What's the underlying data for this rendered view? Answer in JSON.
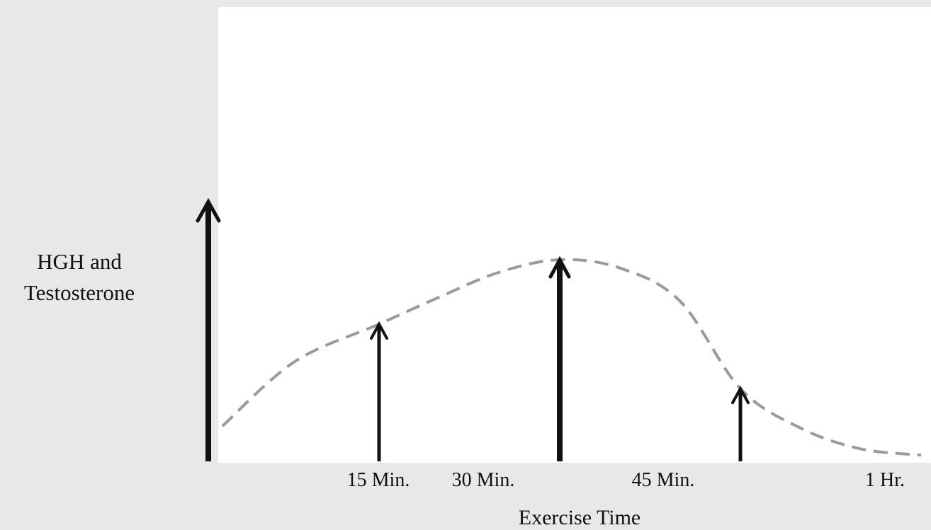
{
  "chart_data": {
    "type": "line",
    "title": "",
    "xlabel": "Exercise Time",
    "ylabel": [
      "HGH and",
      "Testosterone"
    ],
    "x_tick_labels": [
      "15 Min.",
      "30 Min.",
      "45 Min.",
      "1 Hr."
    ],
    "x_tick_values": [
      15,
      30,
      45,
      60
    ],
    "xlim": [
      1,
      60
    ],
    "ylim": [
      0,
      1
    ],
    "grid": false,
    "series": [
      {
        "style": "dashed",
        "color": "#9a9a9a",
        "x": [
          2,
          8,
          15,
          20,
          25,
          30,
          35,
          40,
          45,
          50,
          55,
          60
        ],
        "y": [
          0.17,
          0.48,
          0.66,
          0.79,
          0.91,
          0.97,
          0.93,
          0.77,
          0.35,
          0.16,
          0.06,
          0.03
        ]
      }
    ],
    "arrows": [
      {
        "x": 15,
        "y": 0.66
      },
      {
        "x": 30,
        "y": 0.97
      },
      {
        "x": 45,
        "y": 0.35
      }
    ],
    "colors": {
      "axis": "#111111",
      "curve": "#9a9a9a",
      "plot_bg": "#ffffff",
      "page_bg": "#e8e8e8"
    }
  }
}
